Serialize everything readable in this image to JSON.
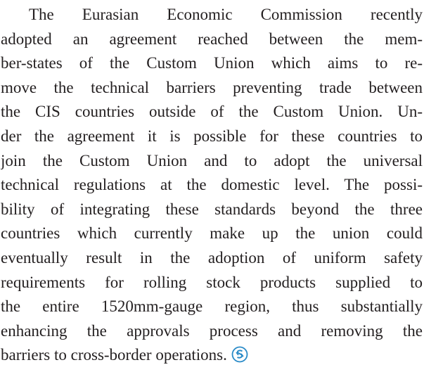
{
  "paragraph": {
    "lines": [
      "The Eurasian Economic Commission recently",
      "adopted an agreement reached between the mem-",
      "ber-states of the Custom Union which aims to re-",
      "move the technical barriers preventing trade between",
      "the CIS countries outside of the Custom Union. Un-",
      "der the agreement it is possible for these countries to",
      "join the Custom Union and to adopt the universal",
      "technical regulations at the domestic level. The possi-",
      "bility of integrating these standards beyond the three",
      "countries which currently make up the union could",
      "eventually result in the adoption of uniform safety",
      "requirements for rolling stock products supplied to",
      "the entire 1520mm-gauge region, thus substantially",
      "enhancing the approvals process and removing the",
      "barriers to cross-border operations."
    ]
  }
}
